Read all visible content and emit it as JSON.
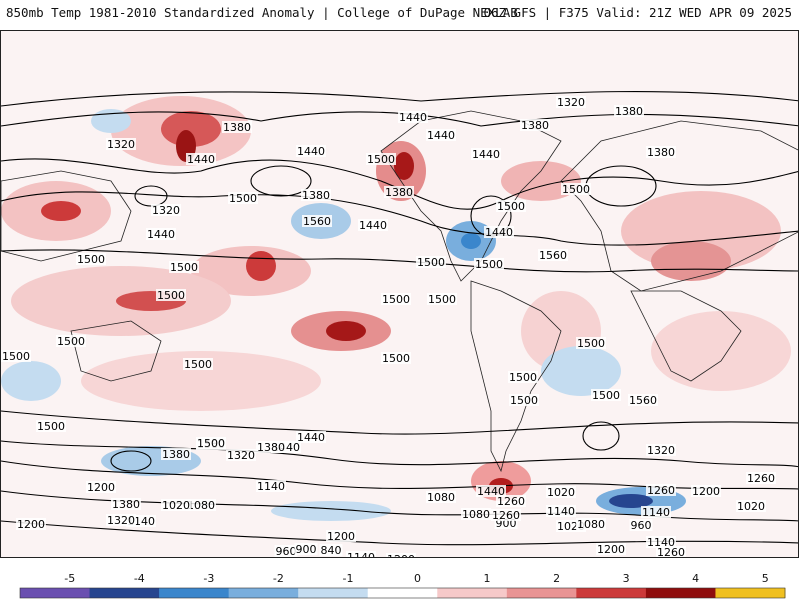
{
  "header": {
    "left": "850mb Temp 1981-2010 Standardized Anomaly | College of DuPage NEXLAB",
    "right": "06Z GFS | F375 Valid: 21Z WED APR 09 2025"
  },
  "colors": {
    "-5": "#6a4fb0",
    "-4": "#26458f",
    "-3": "#3a86cc",
    "-2": "#79aedd",
    "-1": "#c4dcf0",
    "0": "#ffffff",
    "1": "#f6c9c9",
    "2": "#e99494",
    "3": "#cc3a3a",
    "4": "#8f0d0d",
    "5": "#f0c020"
  },
  "colorbar": {
    "ticks": [
      "-5",
      "-4",
      "-3",
      "-2",
      "-1",
      "0",
      "1",
      "2",
      "3",
      "4",
      "5"
    ]
  },
  "height_labels": [
    "1320",
    "1380",
    "1440",
    "1380",
    "1440",
    "1320",
    "1440",
    "1380",
    "1440",
    "1380",
    "1500",
    "1380",
    "1320",
    "1500",
    "1380",
    "1440",
    "1560",
    "1440",
    "1500",
    "1500",
    "1440",
    "1560",
    "1500",
    "1500",
    "1440",
    "1500",
    "1500",
    "1500",
    "1500",
    "1500",
    "1500",
    "1500",
    "1500",
    "1500",
    "1500",
    "1500",
    "1500",
    "1500",
    "1500",
    "1560",
    "1560",
    "1500",
    "1440",
    "1440",
    "1380",
    "1320",
    "1320",
    "1440",
    "1260",
    "1380",
    "1200",
    "1140",
    "1080",
    "1020",
    "1140",
    "1260",
    "1080",
    "900",
    "960",
    "1020",
    "1380",
    "1260",
    "1140",
    "1200",
    "1020",
    "960",
    "1080",
    "1140",
    "1320",
    "1260",
    "1200",
    "1200",
    "1080",
    "1020",
    "1140",
    "1200",
    "1260",
    "900",
    "840",
    "1140",
    "1200"
  ]
}
